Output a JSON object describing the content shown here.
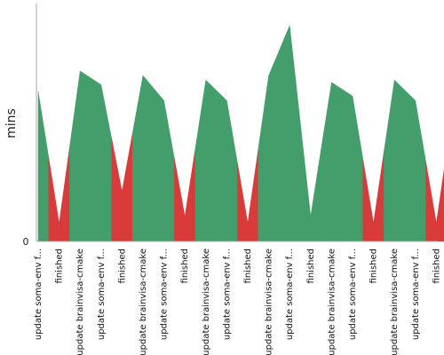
{
  "chart_data": {
    "type": "area",
    "title": "",
    "xlabel": "",
    "ylabel": "mins",
    "y_tick_labels": [
      "0"
    ],
    "ylim": [
      0,
      1
    ],
    "grid": false,
    "legend": "none",
    "colors": {
      "ok": "#449e6b",
      "failed": "#d93a3a",
      "axis": "#aaaaaa"
    },
    "categories": [
      "update soma-env f...",
      "finished",
      "update brainvisa-cmake",
      "update soma-env f...",
      "finished",
      "update brainvisa-cmake",
      "update soma-env f...",
      "finished",
      "update brainvisa-cmake",
      "update soma-env f...",
      "finished",
      "update brainvisa-cmake",
      "update soma-env f...",
      "finished",
      "update brainvisa-cmake",
      "update soma-env f...",
      "finished",
      "update brainvisa-cmake",
      "update soma-env f...",
      "finished",
      "update brainvisa-cmake",
      "update soma-env f...",
      "finished"
    ],
    "values": [
      0.66,
      0.08,
      0.75,
      0.69,
      0.22,
      0.73,
      0.62,
      0.11,
      0.71,
      0.62,
      0.08,
      0.73,
      0.95,
      0.11,
      0.7,
      0.64,
      0.08,
      0.71,
      0.62,
      0.08,
      0.72,
      0.62,
      0.22
    ],
    "status": [
      "ok",
      "failed",
      "ok",
      "ok",
      "failed",
      "ok",
      "ok",
      "failed",
      "ok",
      "ok",
      "failed",
      "ok",
      "ok",
      "ok",
      "ok",
      "ok",
      "failed",
      "ok",
      "ok",
      "failed",
      "ok",
      "ok",
      "failed"
    ]
  }
}
